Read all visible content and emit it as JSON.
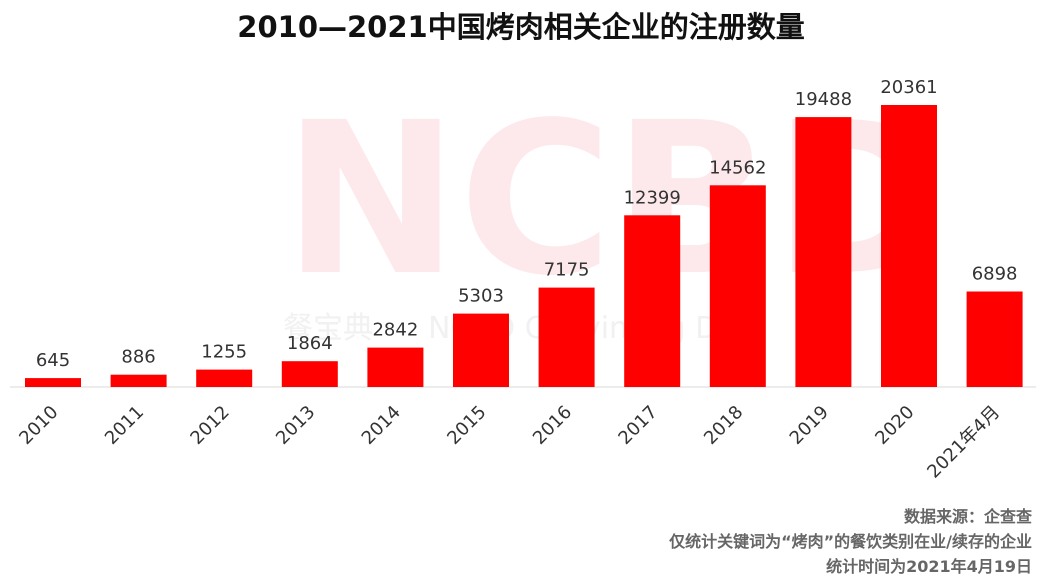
{
  "chart_data": {
    "type": "bar",
    "title": "2010—2021中国烤肉相关企业的注册数量",
    "categories": [
      "2010",
      "2011",
      "2012",
      "2013",
      "2014",
      "2015",
      "2016",
      "2017",
      "2018",
      "2019",
      "2020",
      "2021年4月"
    ],
    "values": [
      645,
      886,
      1255,
      1864,
      2842,
      5303,
      7175,
      12399,
      14562,
      19488,
      20361,
      6898
    ],
    "ylim": [
      0,
      20361
    ],
    "xlabel": "",
    "ylabel": "",
    "grid": false,
    "legend": "none",
    "bar_color": "#ff0000"
  },
  "watermark": {
    "logo_text": "NCBD",
    "cn_text": "餐宝典",
    "en_text": "NCBD Canyin Big Data"
  },
  "notes": {
    "source": "数据来源：企查查",
    "scope": "仅统计关键词为“烤肉”的餐饮类别在业/续存的企业",
    "date": "统计时间为2021年4月19日"
  }
}
